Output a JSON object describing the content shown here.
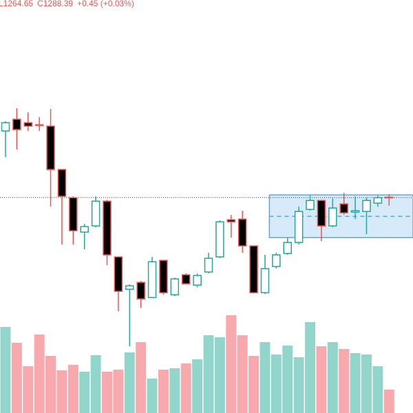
{
  "chart_data": {
    "type": "candlestick",
    "legend": [
      "L1264.65",
      "C1288.39",
      "+0.45 (+0.03%)"
    ],
    "legend_color": "#ef5350",
    "up_color": "#26a69a",
    "down_color": "#ef5350",
    "volume_up_color": "#92d6cb",
    "volume_down_color": "#f7a9ad",
    "open": [
      1482,
      1516,
      1506,
      1500,
      1496,
      1370,
      1288,
      1188,
      1206,
      1278,
      1116,
      1022,
      1042,
      998,
      1106,
      1006,
      1064,
      1034,
      1072,
      1116,
      1224,
      1226,
      1148,
      1012,
      1088,
      1126,
      1158,
      1254,
      1280,
      1206,
      1270,
      1246,
      1248,
      1272,
      1289.5
    ],
    "high": [
      1510,
      1548,
      1536,
      1522,
      1546,
      1370,
      1292,
      1212,
      1292,
      1282,
      1116,
      1036,
      1046,
      1116,
      1106,
      1056,
      1068,
      1068,
      1128,
      1222,
      1238,
      1250,
      1148,
      1122,
      1128,
      1172,
      1262,
      1296,
      1282,
      1286,
      1302,
      1292,
      1288,
      1294,
      1298
    ],
    "low": [
      1406,
      1428,
      1482,
      1482,
      1262,
      1152,
      1152,
      1138,
      1202,
      1092,
      958,
      856,
      968,
      998,
      1006,
      1002,
      1036,
      1028,
      1068,
      1112,
      1172,
      1128,
      1010,
      1008,
      1082,
      1122,
      1152,
      1250,
      1162,
      1202,
      1238,
      1226,
      1182,
      1262,
      1264.65
    ],
    "close": [
      1506,
      1486,
      1496,
      1498,
      1370,
      1292,
      1192,
      1204,
      1278,
      1122,
      1016,
      1032,
      994,
      1102,
      1012,
      1052,
      1038,
      1062,
      1112,
      1218,
      1218,
      1148,
      1012,
      1082,
      1122,
      1158,
      1248,
      1280,
      1206,
      1258,
      1244,
      1250,
      1280,
      1287.94,
      1288.39
    ],
    "volume": [
      125,
      102,
      68,
      114,
      83,
      62,
      70,
      60,
      84,
      60,
      63,
      88,
      103,
      50,
      63,
      65,
      72,
      78,
      113,
      110,
      142,
      113,
      83,
      103,
      85,
      98,
      81,
      132,
      97,
      103,
      93,
      87,
      85,
      68,
      34
    ],
    "ylim": [
      662.39,
      1862.39
    ],
    "volume_lim": [
      0,
      150
    ],
    "range_box": {
      "start": 24,
      "top": 1296,
      "bottom": 1172,
      "mid": 1234,
      "fill": "#cfe6f8",
      "stroke": "#5aa9e6"
    },
    "last_price_line": true
  }
}
